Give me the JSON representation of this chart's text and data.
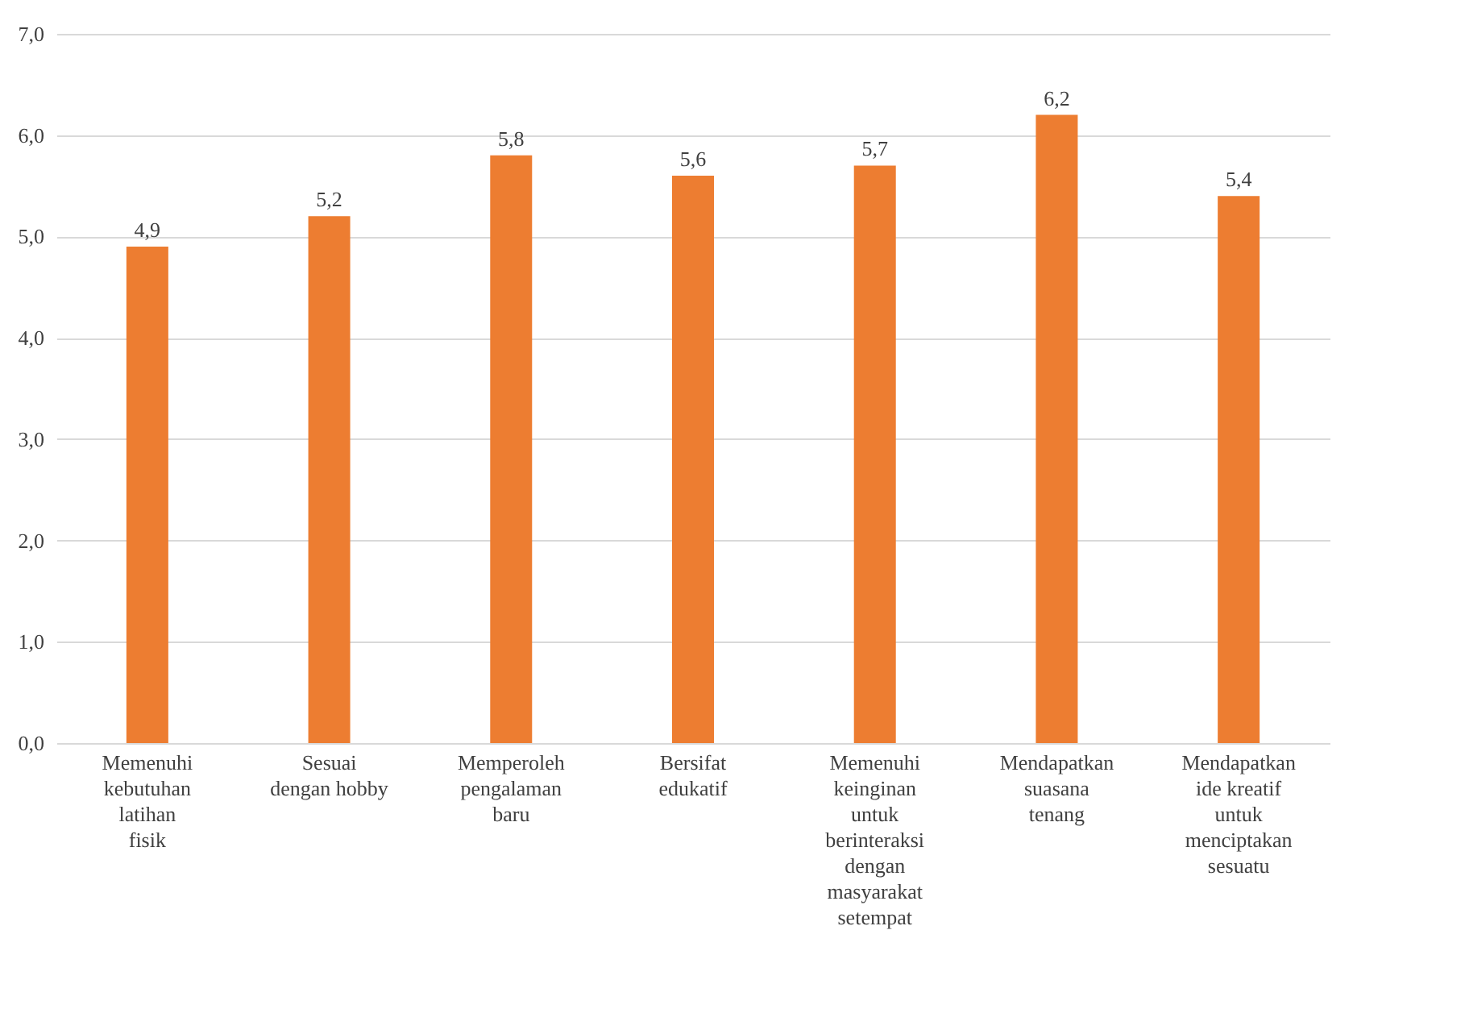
{
  "chart_data": {
    "type": "bar",
    "categories": [
      "Memenuhi kebutuhan latihan fisik",
      "Sesuai dengan hobby",
      "Memperoleh pengalaman baru",
      "Bersifat edukatif",
      "Memenuhi keinginan untuk berinteraksi dengan masyarakat setempat",
      "Mendapatkan suasana tenang",
      "Mendapatkan ide kreatif untuk menciptakan sesuatu"
    ],
    "values": [
      4.9,
      5.2,
      5.8,
      5.6,
      5.7,
      6.2,
      5.4
    ],
    "value_labels": [
      "4,9",
      "5,2",
      "5,8",
      "5,6",
      "5,7",
      "6,2",
      "5,4"
    ],
    "color": "#ed7d31",
    "ylim": [
      0,
      7
    ],
    "yticks": [
      {
        "value": 0,
        "label": "0,0"
      },
      {
        "value": 1,
        "label": "1,0"
      },
      {
        "value": 2,
        "label": "2,0"
      },
      {
        "value": 3,
        "label": "3,0"
      },
      {
        "value": 4,
        "label": "4,0"
      },
      {
        "value": 5,
        "label": "5,0"
      },
      {
        "value": 6,
        "label": "6,0"
      },
      {
        "value": 7,
        "label": "7,0"
      }
    ],
    "grid": "y"
  }
}
